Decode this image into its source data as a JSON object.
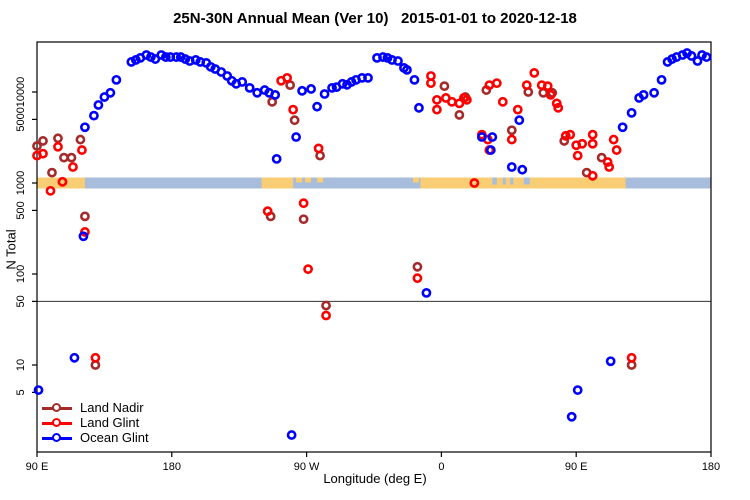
{
  "title": "25N-30N Annual Mean (Ver 10)   2015-01-01 to 2020-12-18",
  "legend": {
    "items": [
      {
        "label": "Land Nadir",
        "color": "#A52A2A"
      },
      {
        "label": "Land Glint",
        "color": "#FF0000"
      },
      {
        "label": "Ocean Glint",
        "color": "#0000FF"
      }
    ]
  },
  "chart_data": {
    "type": "scatter",
    "title": "25N-30N Annual Mean (Ver 10)   2015-01-01 to 2020-12-18",
    "xlabel": "Longitude (deg E)",
    "ylabel": "N Total",
    "x_axis": {
      "note": "axis spans 450 deg of longitude starting at 90E and wrapping past 180 twice",
      "range_deg": [
        0,
        450
      ],
      "ticks": [
        {
          "pos": 0,
          "label": "90 E"
        },
        {
          "pos": 90,
          "label": "180"
        },
        {
          "pos": 180,
          "label": "90 W"
        },
        {
          "pos": 270,
          "label": "0"
        },
        {
          "pos": 360,
          "label": "90 E"
        },
        {
          "pos": 450,
          "label": "180"
        }
      ]
    },
    "y_axis": {
      "scale": "log10",
      "range": [
        1.1,
        35000
      ],
      "ticks": [
        10000,
        5000,
        1000,
        500,
        100,
        50,
        10,
        5
      ]
    },
    "reference_line_y": 50,
    "map_strip": {
      "comment": "land/ocean strip drawn across plot centered at N=1000",
      "center_value": 1000,
      "ocean_color": "#a8bcdc",
      "land_color": "#f9cd74",
      "land_segments_deg": [
        [
          0,
          32
        ],
        [
          150,
          171
        ],
        [
          256,
          393
        ]
      ],
      "ocean_notches_deg": [
        [
          304,
          307
        ],
        [
          311,
          313
        ],
        [
          316,
          318
        ],
        [
          325,
          329
        ]
      ],
      "land_flecks_deg": [
        [
          173,
          177
        ],
        [
          179,
          183
        ],
        [
          187,
          191
        ],
        [
          251,
          255
        ]
      ]
    },
    "series": [
      {
        "name": "Land Nadir",
        "color": "#A52A2A",
        "points": [
          [
            0,
            2550
          ],
          [
            4,
            2900
          ],
          [
            14,
            3100
          ],
          [
            29,
            3000
          ],
          [
            18,
            1900
          ],
          [
            23,
            1900
          ],
          [
            10,
            1300
          ],
          [
            32,
            430
          ],
          [
            39,
            10
          ],
          [
            157,
            7800
          ],
          [
            169,
            11900
          ],
          [
            172,
            4900
          ],
          [
            189,
            2000
          ],
          [
            156,
            430
          ],
          [
            178,
            400
          ],
          [
            193,
            45
          ],
          [
            254,
            120
          ],
          [
            272,
            11600
          ],
          [
            286,
            8800
          ],
          [
            282,
            5600
          ],
          [
            300,
            10500
          ],
          [
            317,
            3800
          ],
          [
            328,
            10000
          ],
          [
            338,
            9800
          ],
          [
            344,
            9800
          ],
          [
            352,
            2900
          ],
          [
            377,
            1900
          ],
          [
            367,
            1300
          ],
          [
            397,
            10
          ]
        ]
      },
      {
        "name": "Land Glint",
        "color": "#FF0000",
        "points": [
          [
            0,
            2000
          ],
          [
            4,
            2100
          ],
          [
            14,
            2500
          ],
          [
            30,
            2300
          ],
          [
            24,
            1500
          ],
          [
            17,
            1030
          ],
          [
            9,
            820
          ],
          [
            32,
            290
          ],
          [
            39,
            12
          ],
          [
            163,
            13300
          ],
          [
            167,
            14300
          ],
          [
            171,
            6400
          ],
          [
            188,
            2400
          ],
          [
            178,
            600
          ],
          [
            154,
            490
          ],
          [
            181,
            113
          ],
          [
            193,
            35
          ],
          [
            263,
            15000
          ],
          [
            263,
            12500
          ],
          [
            267,
            8200
          ],
          [
            273,
            8600
          ],
          [
            277,
            7800
          ],
          [
            282,
            7500
          ],
          [
            285,
            8600
          ],
          [
            287,
            8200
          ],
          [
            267,
            6400
          ],
          [
            254,
            90
          ],
          [
            297,
            3400
          ],
          [
            301,
            3000
          ],
          [
            302,
            2300
          ],
          [
            302,
            11900
          ],
          [
            307,
            12500
          ],
          [
            311,
            7800
          ],
          [
            321,
            6400
          ],
          [
            327,
            11900
          ],
          [
            332,
            16200
          ],
          [
            337,
            11900
          ],
          [
            341,
            11600
          ],
          [
            343,
            9300
          ],
          [
            347,
            7500
          ],
          [
            348,
            6700
          ],
          [
            317,
            3000
          ],
          [
            292,
            1000
          ],
          [
            353,
            3300
          ],
          [
            356,
            3400
          ],
          [
            360,
            2600
          ],
          [
            364,
            2700
          ],
          [
            361,
            2000
          ],
          [
            371,
            3400
          ],
          [
            371,
            2700
          ],
          [
            385,
            3000
          ],
          [
            387,
            2300
          ],
          [
            381,
            1700
          ],
          [
            382,
            1500
          ],
          [
            371,
            1200
          ],
          [
            397,
            12
          ]
        ]
      },
      {
        "name": "Ocean Glint",
        "color": "#0000FF",
        "points": [
          [
            32,
            4100
          ],
          [
            38,
            5500
          ],
          [
            41,
            7200
          ],
          [
            45,
            8800
          ],
          [
            49,
            9800
          ],
          [
            53,
            13600
          ],
          [
            63,
            21400
          ],
          [
            66,
            22500
          ],
          [
            69,
            23700
          ],
          [
            73,
            25500
          ],
          [
            76,
            24200
          ],
          [
            79,
            23000
          ],
          [
            83,
            25500
          ],
          [
            86,
            24200
          ],
          [
            89,
            24200
          ],
          [
            93,
            24200
          ],
          [
            96,
            24200
          ],
          [
            99,
            23000
          ],
          [
            102,
            21900
          ],
          [
            106,
            22500
          ],
          [
            109,
            21400
          ],
          [
            113,
            20900
          ],
          [
            116,
            18900
          ],
          [
            119,
            17900
          ],
          [
            123,
            16600
          ],
          [
            127,
            15000
          ],
          [
            130,
            13300
          ],
          [
            133,
            12300
          ],
          [
            137,
            12900
          ],
          [
            142,
            11100
          ],
          [
            147,
            9800
          ],
          [
            152,
            10500
          ],
          [
            155,
            9800
          ],
          [
            159,
            9300
          ],
          [
            160,
            1840
          ],
          [
            173,
            3200
          ],
          [
            177,
            10300
          ],
          [
            183,
            10800
          ],
          [
            187,
            6900
          ],
          [
            192,
            9500
          ],
          [
            197,
            11100
          ],
          [
            200,
            11300
          ],
          [
            204,
            12300
          ],
          [
            207,
            12000
          ],
          [
            210,
            12900
          ],
          [
            213,
            13600
          ],
          [
            217,
            14300
          ],
          [
            221,
            14300
          ],
          [
            227,
            23700
          ],
          [
            231,
            24200
          ],
          [
            234,
            23700
          ],
          [
            237,
            22500
          ],
          [
            241,
            21900
          ],
          [
            245,
            18400
          ],
          [
            247,
            17500
          ],
          [
            252,
            13600
          ],
          [
            255,
            6700
          ],
          [
            260,
            62
          ],
          [
            297,
            3200
          ],
          [
            303,
            2300
          ],
          [
            304,
            3200
          ],
          [
            317,
            1500
          ],
          [
            322,
            4900
          ],
          [
            324,
            1400
          ],
          [
            391,
            4100
          ],
          [
            397,
            5900
          ],
          [
            402,
            8600
          ],
          [
            405,
            9300
          ],
          [
            412,
            9800
          ],
          [
            417,
            13600
          ],
          [
            421,
            21400
          ],
          [
            424,
            23000
          ],
          [
            427,
            24200
          ],
          [
            431,
            25500
          ],
          [
            434,
            26800
          ],
          [
            437,
            24900
          ],
          [
            441,
            21900
          ],
          [
            444,
            25500
          ],
          [
            447,
            24200
          ],
          [
            31,
            260
          ],
          [
            25,
            12
          ],
          [
            1,
            5.3
          ],
          [
            170,
            1.7
          ],
          [
            357,
            2.7
          ],
          [
            361,
            5.3
          ],
          [
            383,
            11
          ]
        ]
      }
    ]
  }
}
